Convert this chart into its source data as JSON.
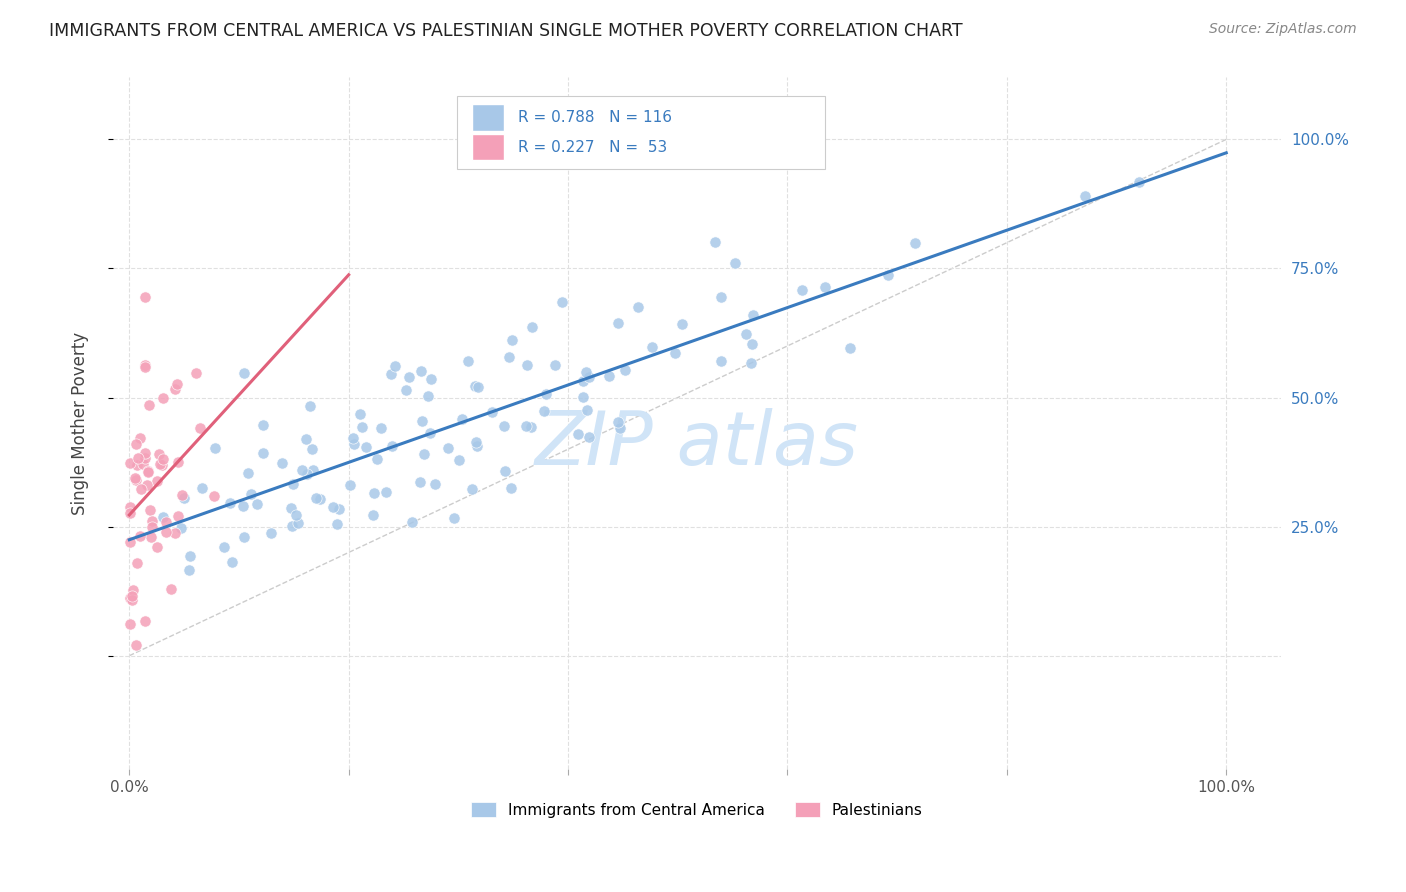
{
  "title": "IMMIGRANTS FROM CENTRAL AMERICA VS PALESTINIAN SINGLE MOTHER POVERTY CORRELATION CHART",
  "source": "Source: ZipAtlas.com",
  "ylabel": "Single Mother Poverty",
  "blue_R": 0.788,
  "blue_N": 116,
  "pink_R": 0.227,
  "pink_N": 53,
  "blue_color": "#a8c8e8",
  "pink_color": "#f4a0b8",
  "blue_line_color": "#3a7bbf",
  "pink_line_color": "#e0607a",
  "diagonal_color": "#cccccc",
  "watermark_text": "ZIP atlas",
  "watermark_color": "#d0e4f7",
  "background_color": "#ffffff",
  "grid_color": "#e0e0e0",
  "label_blue": "Immigrants from Central America",
  "label_pink": "Palestinians",
  "legend_R_N_color": "#3a7bbf",
  "right_yaxis_color": "#3a7bbf",
  "title_color": "#222222",
  "source_color": "#888888",
  "axis_label_color": "#444444",
  "tick_label_color": "#555555"
}
